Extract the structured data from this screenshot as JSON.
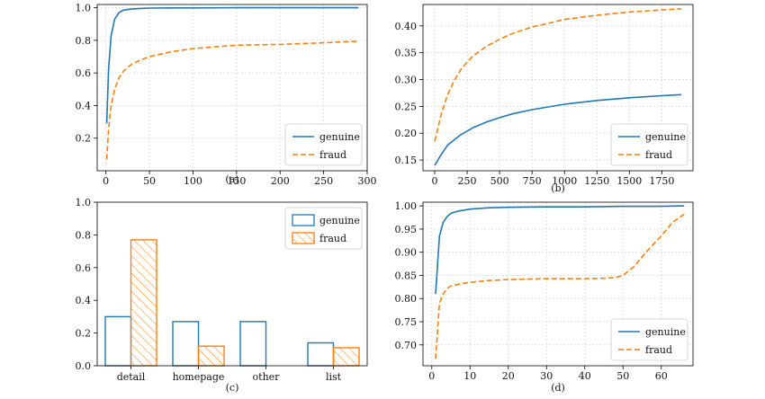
{
  "chart_data": [
    {
      "id": "a",
      "type": "line",
      "caption": "(a)",
      "xlim": [
        -10,
        300
      ],
      "ylim": [
        0.0,
        1.02
      ],
      "xticks": [
        0,
        50,
        100,
        150,
        200,
        250,
        300
      ],
      "yticks": [
        0.2,
        0.4,
        0.6,
        0.8,
        1.0
      ],
      "ytick_labels": [
        "0.2",
        "0.4",
        "0.6",
        "0.8",
        "1.0"
      ],
      "grid": true,
      "legend": "bottom-right",
      "series": [
        {
          "name": "genuine",
          "color": "#1f77b4",
          "dash": "solid",
          "x": [
            1,
            3,
            6,
            10,
            15,
            20,
            30,
            40,
            50,
            75,
            100,
            150,
            200,
            250,
            290
          ],
          "y": [
            0.29,
            0.62,
            0.83,
            0.93,
            0.97,
            0.985,
            0.993,
            0.996,
            0.998,
            0.999,
            0.999,
            1.0,
            1.0,
            1.0,
            1.0
          ]
        },
        {
          "name": "fraud",
          "color": "#ff7f0e",
          "dash": "dashed",
          "x": [
            1,
            3,
            6,
            10,
            15,
            20,
            30,
            40,
            50,
            75,
            100,
            150,
            200,
            250,
            290
          ],
          "y": [
            0.07,
            0.25,
            0.4,
            0.5,
            0.57,
            0.61,
            0.655,
            0.68,
            0.7,
            0.73,
            0.75,
            0.77,
            0.775,
            0.785,
            0.795
          ]
        }
      ]
    },
    {
      "id": "b",
      "type": "line",
      "caption": "(b)",
      "xlim": [
        -90,
        1990
      ],
      "ylim": [
        0.13,
        0.44
      ],
      "xticks": [
        0,
        250,
        500,
        750,
        1000,
        1250,
        1500,
        1750
      ],
      "yticks": [
        0.15,
        0.2,
        0.25,
        0.3,
        0.35,
        0.4
      ],
      "ytick_labels": [
        "0.15",
        "0.20",
        "0.25",
        "0.30",
        "0.35",
        "0.40"
      ],
      "grid": true,
      "legend": "bottom-right",
      "series": [
        {
          "name": "genuine",
          "color": "#1f77b4",
          "dash": "solid",
          "x": [
            1,
            50,
            100,
            200,
            300,
            400,
            500,
            600,
            750,
            1000,
            1250,
            1500,
            1750,
            1900
          ],
          "y": [
            0.14,
            0.16,
            0.178,
            0.197,
            0.211,
            0.221,
            0.229,
            0.236,
            0.244,
            0.254,
            0.261,
            0.266,
            0.27,
            0.272
          ]
        },
        {
          "name": "fraud",
          "color": "#ff7f0e",
          "dash": "dashed",
          "x": [
            1,
            50,
            100,
            150,
            200,
            250,
            300,
            400,
            500,
            600,
            750,
            1000,
            1250,
            1500,
            1750,
            1900
          ],
          "y": [
            0.185,
            0.235,
            0.272,
            0.298,
            0.318,
            0.333,
            0.345,
            0.362,
            0.375,
            0.386,
            0.398,
            0.412,
            0.42,
            0.426,
            0.43,
            0.432
          ]
        }
      ]
    },
    {
      "id": "c",
      "type": "bar",
      "caption": "(c)",
      "categories": [
        "detail",
        "homepage",
        "other",
        "list"
      ],
      "ylim": [
        0.0,
        1.0
      ],
      "yticks": [
        0.0,
        0.2,
        0.4,
        0.6,
        0.8,
        1.0
      ],
      "ytick_labels": [
        "0.0",
        "0.2",
        "0.4",
        "0.6",
        "0.8",
        "1.0"
      ],
      "grid": false,
      "legend": "top-right",
      "series": [
        {
          "name": "genuine",
          "color": "#1f77b4",
          "hatch": false,
          "values": [
            0.3,
            0.27,
            0.27,
            0.14
          ]
        },
        {
          "name": "fraud",
          "color": "#ff7f0e",
          "hatch": true,
          "values": [
            0.77,
            0.12,
            0.0,
            0.11
          ]
        }
      ]
    },
    {
      "id": "d",
      "type": "line",
      "caption": "(d)",
      "xlim": [
        -2.3,
        68.3
      ],
      "ylim": [
        0.655,
        1.008
      ],
      "xticks": [
        0,
        10,
        20,
        30,
        40,
        50,
        60
      ],
      "yticks": [
        0.7,
        0.75,
        0.8,
        0.85,
        0.9,
        0.95,
        1.0
      ],
      "ytick_labels": [
        "0.70",
        "0.75",
        "0.80",
        "0.85",
        "0.90",
        "0.95",
        "1.00"
      ],
      "grid": true,
      "legend": "bottom-right",
      "series": [
        {
          "name": "genuine",
          "color": "#1f77b4",
          "dash": "solid",
          "x": [
            1,
            2,
            3,
            4,
            5,
            7,
            10,
            15,
            20,
            30,
            40,
            50,
            60,
            66
          ],
          "y": [
            0.81,
            0.935,
            0.965,
            0.977,
            0.984,
            0.989,
            0.993,
            0.996,
            0.997,
            0.998,
            0.998,
            0.999,
            0.999,
            1.0
          ]
        },
        {
          "name": "fraud",
          "color": "#ff7f0e",
          "dash": "dashed",
          "x": [
            1,
            2,
            3,
            4,
            5,
            7,
            10,
            15,
            20,
            30,
            40,
            45,
            48,
            50,
            53,
            56,
            60,
            63,
            66
          ],
          "y": [
            0.67,
            0.79,
            0.81,
            0.822,
            0.827,
            0.831,
            0.835,
            0.839,
            0.841,
            0.843,
            0.843,
            0.844,
            0.845,
            0.85,
            0.87,
            0.9,
            0.935,
            0.965,
            0.982
          ]
        }
      ]
    }
  ]
}
